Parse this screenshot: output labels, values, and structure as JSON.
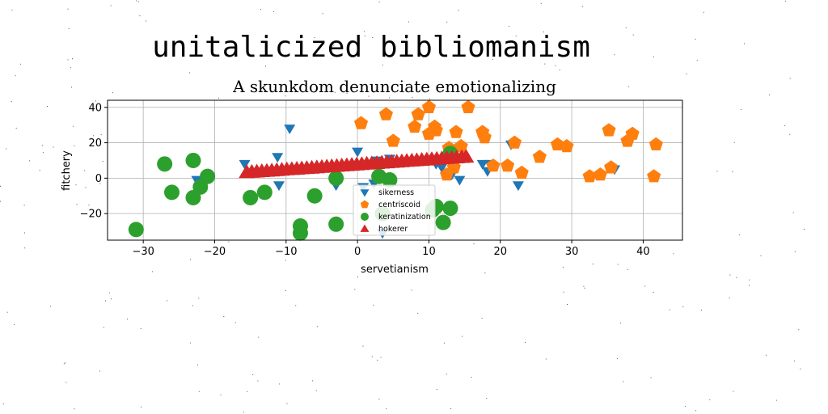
{
  "figure": {
    "suptitle": "unitalicized bibliomanism"
  },
  "chart_data": {
    "type": "scatter",
    "title": "A skunkdom denunciate emotionalizing",
    "xlabel": "servetianism",
    "ylabel": "fitchery",
    "xlim": [
      -35,
      45.5
    ],
    "ylim": [
      -35,
      44
    ],
    "xticks": [
      -30,
      -20,
      -10,
      0,
      10,
      20,
      30,
      40
    ],
    "yticks": [
      -20,
      0,
      20,
      40
    ],
    "xtick_labels": [
      "−30",
      "−20",
      "−10",
      "0",
      "10",
      "20",
      "30",
      "40"
    ],
    "ytick_labels": [
      "−20",
      "0",
      "20",
      "40"
    ],
    "grid": true,
    "legend_position": "lower-center",
    "series": [
      {
        "name": "sikerness",
        "marker": "triangle-down",
        "color": "#1f77b4",
        "points": [
          [
            -9.5,
            28
          ],
          [
            -15.8,
            8
          ],
          [
            -11.2,
            12
          ],
          [
            -22.5,
            -1
          ],
          [
            -11,
            -4
          ],
          [
            -3,
            -4
          ],
          [
            0,
            15
          ],
          [
            0.8,
            -5
          ],
          [
            2.3,
            -3
          ],
          [
            2.8,
            10
          ],
          [
            3.5,
            -31
          ],
          [
            4.5,
            11
          ],
          [
            11,
            8
          ],
          [
            11.8,
            6
          ],
          [
            13.2,
            2
          ],
          [
            14.3,
            -1
          ],
          [
            17.5,
            8
          ],
          [
            18.2,
            4
          ],
          [
            18.5,
            8
          ],
          [
            21.5,
            19
          ],
          [
            22.5,
            -4
          ],
          [
            36,
            5
          ],
          [
            12.8,
            16
          ]
        ]
      },
      {
        "name": "centriscoid",
        "marker": "pentagon",
        "color": "#ff7f0e",
        "points": [
          [
            0.5,
            31
          ],
          [
            4,
            36
          ],
          [
            5,
            21
          ],
          [
            8,
            29
          ],
          [
            8.5,
            36
          ],
          [
            10,
            25
          ],
          [
            10,
            40
          ],
          [
            10.8,
            29
          ],
          [
            11,
            27
          ],
          [
            12.5,
            2
          ],
          [
            12.8,
            17
          ],
          [
            13.5,
            6
          ],
          [
            13.8,
            26
          ],
          [
            14.5,
            18
          ],
          [
            15.5,
            40
          ],
          [
            17.5,
            26
          ],
          [
            17.8,
            23
          ],
          [
            19,
            7
          ],
          [
            21,
            7
          ],
          [
            22,
            20
          ],
          [
            23,
            3
          ],
          [
            25.5,
            12
          ],
          [
            28,
            19
          ],
          [
            29.3,
            18
          ],
          [
            32.5,
            1
          ],
          [
            34,
            2
          ],
          [
            35.2,
            27
          ],
          [
            35.5,
            6
          ],
          [
            37.8,
            21
          ],
          [
            38.5,
            25
          ],
          [
            41.5,
            1
          ],
          [
            41.8,
            19
          ]
        ]
      },
      {
        "name": "keratinization",
        "marker": "circle",
        "color": "#2ca02c",
        "points": [
          [
            -31,
            -29
          ],
          [
            -27,
            8
          ],
          [
            -26,
            -8
          ],
          [
            -23,
            10
          ],
          [
            -23,
            -11
          ],
          [
            -22,
            -5
          ],
          [
            -21,
            1
          ],
          [
            -15,
            -11
          ],
          [
            -13,
            -8
          ],
          [
            -8,
            -27
          ],
          [
            -8,
            -31
          ],
          [
            -6,
            -10
          ],
          [
            -3,
            -26
          ],
          [
            -3,
            0
          ],
          [
            3,
            1
          ],
          [
            3.5,
            -20
          ],
          [
            4.5,
            -1
          ],
          [
            10.5,
            -18
          ],
          [
            11,
            -16
          ],
          [
            12,
            -25
          ],
          [
            13,
            -17
          ],
          [
            13,
            14
          ]
        ]
      },
      {
        "name": "hokerer",
        "marker": "triangle-up",
        "color": "#d62728",
        "points": [
          [
            -15.5,
            3.2
          ],
          [
            -14.8,
            3.4
          ],
          [
            -14.1,
            3.6
          ],
          [
            -13.4,
            3.8
          ],
          [
            -12.7,
            4.0
          ],
          [
            -12.0,
            4.2
          ],
          [
            -11.3,
            4.4
          ],
          [
            -10.6,
            4.6
          ],
          [
            -9.9,
            4.8
          ],
          [
            -9.2,
            5.0
          ],
          [
            -8.5,
            5.2
          ],
          [
            -7.8,
            5.4
          ],
          [
            -7.1,
            5.6
          ],
          [
            -6.4,
            5.8
          ],
          [
            -5.7,
            6.0
          ],
          [
            -5.0,
            6.2
          ],
          [
            -4.3,
            6.4
          ],
          [
            -3.6,
            6.6
          ],
          [
            -2.9,
            6.8
          ],
          [
            -2.2,
            7.0
          ],
          [
            -1.5,
            7.2
          ],
          [
            -0.8,
            7.4
          ],
          [
            -0.1,
            7.6
          ],
          [
            0.6,
            7.8
          ],
          [
            1.3,
            8.0
          ],
          [
            2.0,
            8.2
          ],
          [
            2.7,
            8.4
          ],
          [
            3.4,
            8.6
          ],
          [
            4.1,
            8.8
          ],
          [
            4.8,
            9.0
          ],
          [
            5.5,
            9.2
          ],
          [
            6.2,
            9.4
          ],
          [
            6.9,
            9.6
          ],
          [
            7.6,
            9.8
          ],
          [
            8.3,
            10.0
          ],
          [
            9.0,
            10.2
          ],
          [
            9.7,
            10.4
          ],
          [
            10.4,
            10.6
          ],
          [
            11.1,
            10.8
          ],
          [
            11.8,
            11.0
          ],
          [
            12.5,
            11.2
          ],
          [
            13.2,
            11.4
          ],
          [
            13.9,
            11.6
          ],
          [
            14.6,
            11.8
          ],
          [
            15.2,
            12.0
          ]
        ]
      }
    ]
  }
}
